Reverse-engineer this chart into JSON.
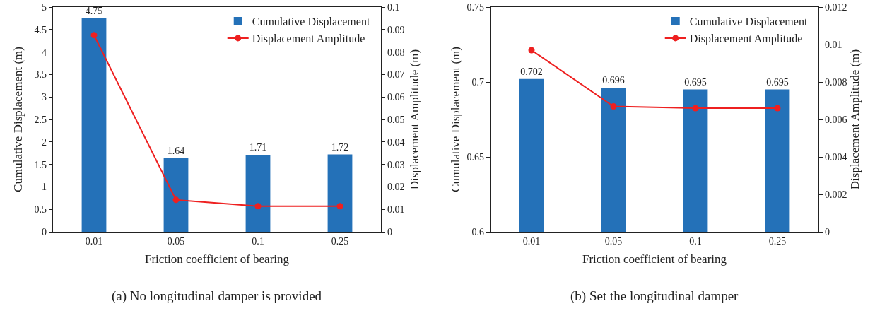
{
  "chart_data": [
    {
      "type": "bar",
      "xlabel": "Friction coefficient of bearing",
      "ylabel": "Cumulative Displacement (m)",
      "y2label": "Displacement Amplitude (m)",
      "categories": [
        "0.01",
        "0.05",
        "0.1",
        "0.25"
      ],
      "series": [
        {
          "name": "Cumulative Displacement",
          "color": "#2471b8",
          "values": [
            4.75,
            1.64,
            1.71,
            1.72
          ],
          "value_labels": [
            "4.75",
            "1.64",
            "1.71",
            "1.72"
          ]
        },
        {
          "name": "Displacement Amplitude",
          "type": "line",
          "axis": "y2",
          "color": "#ee2020",
          "values": [
            0.0875,
            0.0142,
            0.0114,
            0.0114
          ]
        }
      ],
      "ylim": [
        0,
        5
      ],
      "yticks": [
        0,
        0.5,
        1,
        1.5,
        2,
        2.5,
        3,
        3.5,
        4,
        4.5,
        5
      ],
      "y2lim": [
        0,
        0.1
      ],
      "y2ticks": [
        0,
        0.01,
        0.02,
        0.03,
        0.04,
        0.05,
        0.06,
        0.07,
        0.08,
        0.09,
        0.1
      ],
      "grid": false,
      "legend": "top right",
      "marker": "circle",
      "line_style": "solid",
      "annotations": [
        "(a) No longitudinal damper is provided"
      ]
    },
    {
      "type": "bar",
      "xlabel": "Friction coefficient of bearing",
      "ylabel": "Cumulative Displacement (m)",
      "y2label": "Displacement Amplitude (m)",
      "categories": [
        "0.01",
        "0.05",
        "0.1",
        "0.25"
      ],
      "series": [
        {
          "name": "Cumulative Displacement",
          "color": "#2471b8",
          "values": [
            0.702,
            0.696,
            0.695,
            0.695
          ],
          "value_labels": [
            "0.702",
            "0.696",
            "0.695",
            "0.695"
          ]
        },
        {
          "name": "Displacement Amplitude",
          "type": "line",
          "axis": "y2",
          "color": "#ee2020",
          "values": [
            0.0097,
            0.0067,
            0.0066,
            0.0066
          ]
        }
      ],
      "ylim": [
        0.6,
        0.75
      ],
      "yticks": [
        0.6,
        0.65,
        0.7,
        0.75
      ],
      "y2lim": [
        0,
        0.012
      ],
      "y2ticks": [
        0,
        0.002,
        0.004,
        0.006,
        0.008,
        0.01,
        0.012
      ],
      "grid": false,
      "legend": "top right",
      "marker": "circle",
      "line_style": "solid",
      "annotations": [
        "(b) Set the longitudinal damper"
      ]
    }
  ]
}
